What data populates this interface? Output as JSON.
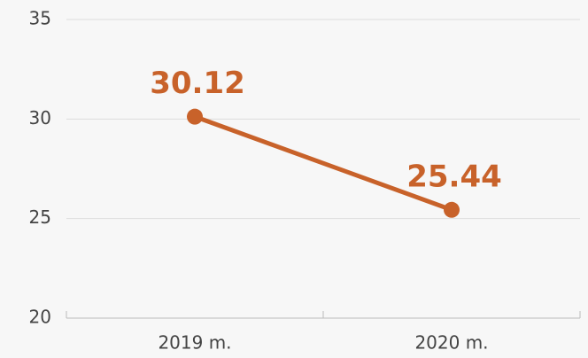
{
  "chart_data": {
    "type": "line",
    "categories": [
      "2019 m.",
      "2020 m."
    ],
    "values": [
      30.12,
      25.44
    ],
    "color": "#c8622a",
    "ylim": [
      20,
      35
    ],
    "yticks": [
      20,
      25,
      30,
      35
    ],
    "grid": true
  }
}
